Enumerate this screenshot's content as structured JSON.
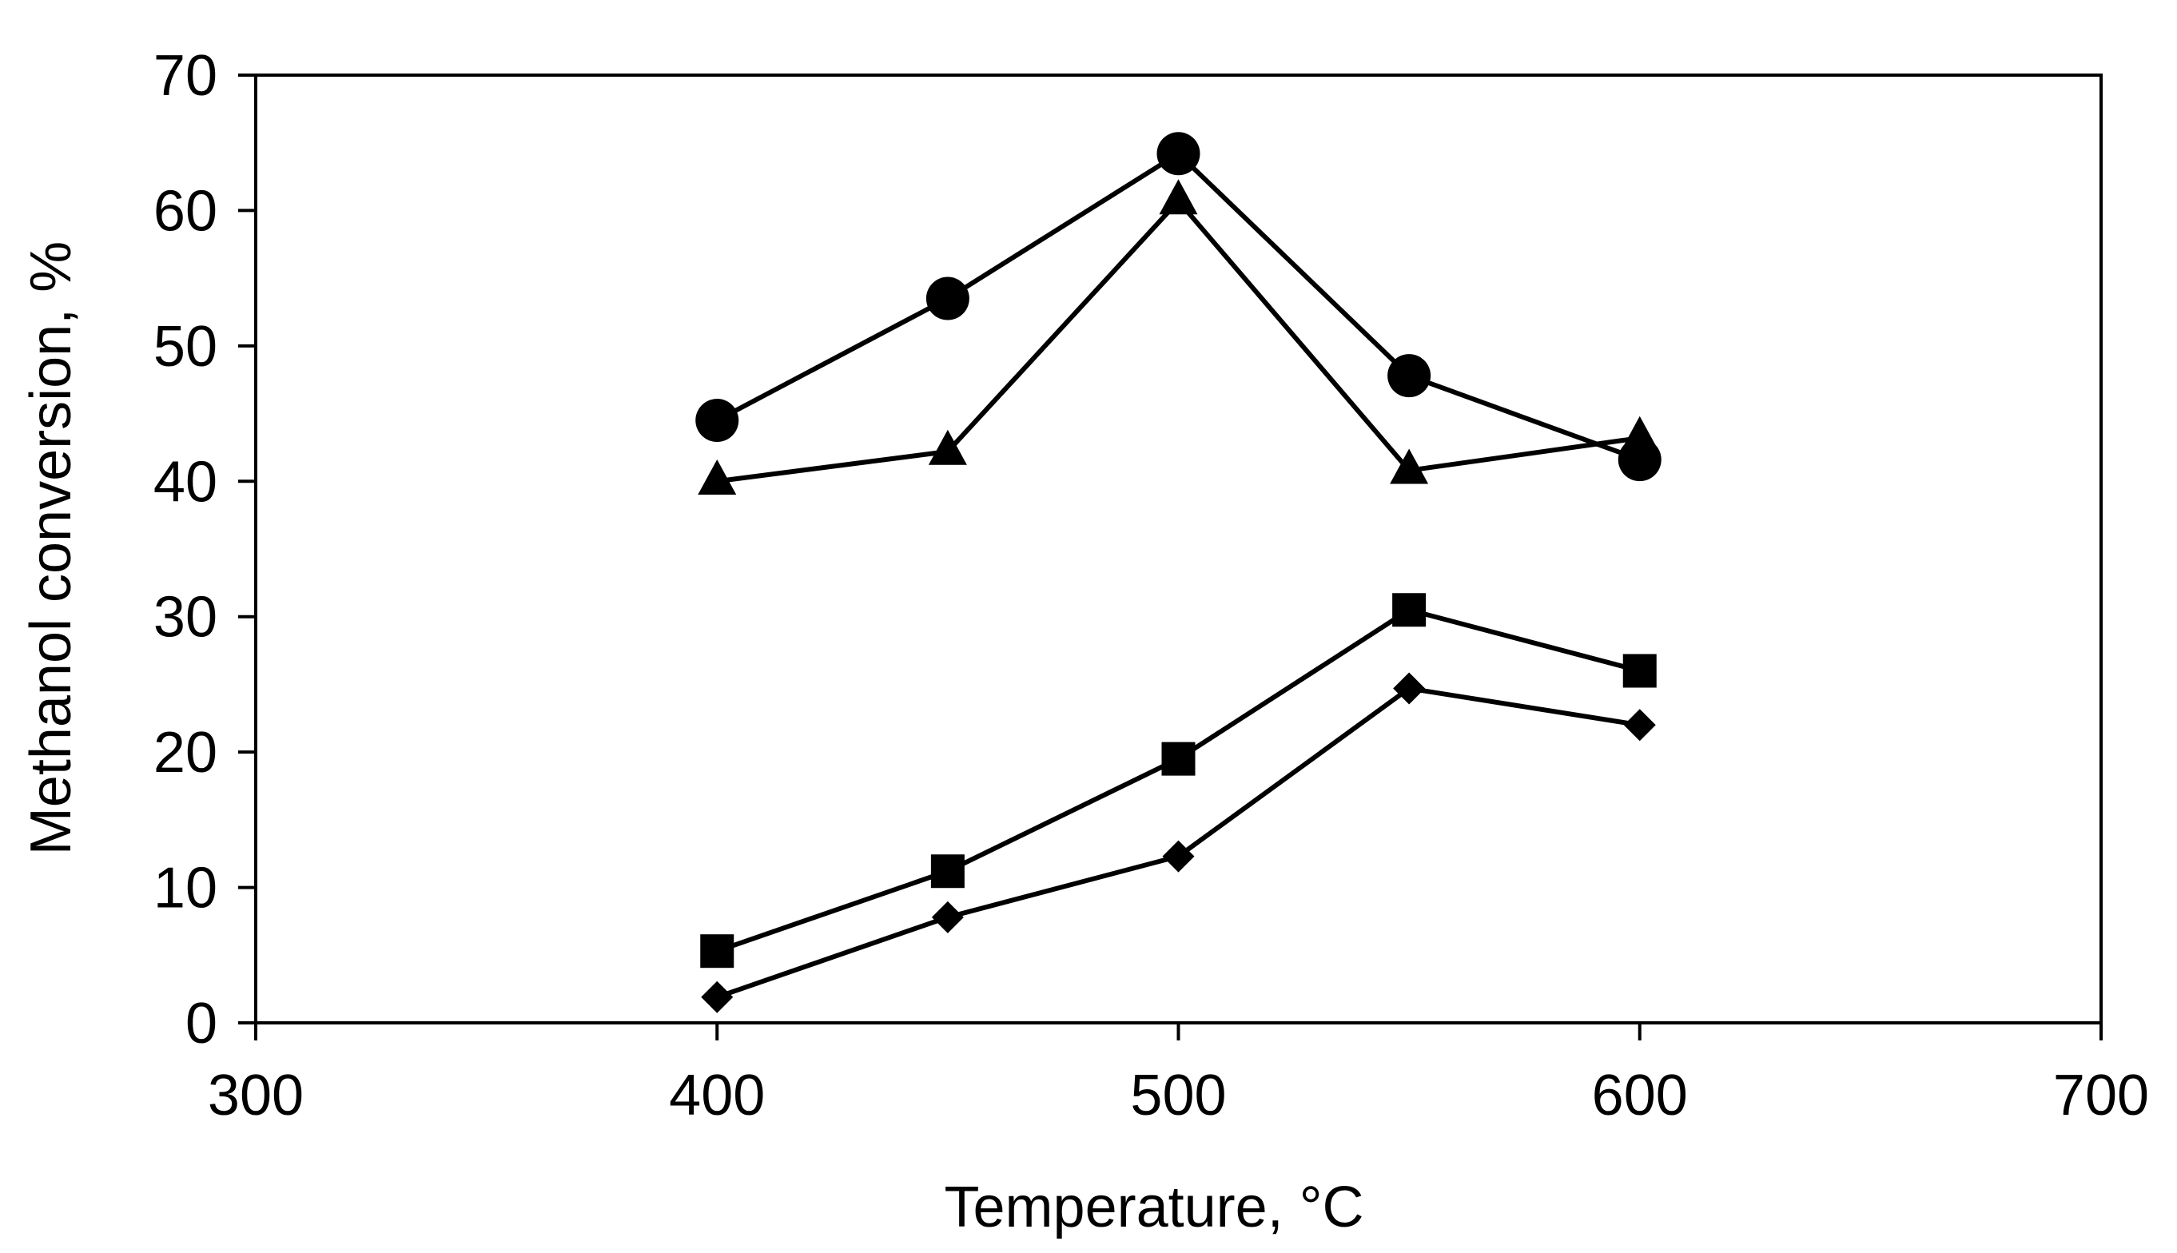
{
  "chart_data": {
    "type": "scatter",
    "title": "",
    "xlabel": "Temperature, °C",
    "ylabel": "Methanol conversion, %",
    "xlim": [
      300,
      700
    ],
    "ylim": [
      0,
      70
    ],
    "xticks": [
      300,
      400,
      500,
      600,
      700
    ],
    "yticks": [
      0,
      10,
      20,
      30,
      40,
      50,
      60,
      70
    ],
    "grid": false,
    "legend": "none",
    "colors": {
      "line": "#000000",
      "marker": "#000000",
      "background": "#ffffff"
    },
    "series": [
      {
        "marker": "circle",
        "x": [
          400,
          450,
          500,
          550,
          600
        ],
        "y": [
          44.5,
          53.5,
          64.2,
          47.8,
          41.6
        ]
      },
      {
        "marker": "triangle",
        "x": [
          400,
          450,
          500,
          550,
          600
        ],
        "y": [
          40.0,
          42.2,
          60.7,
          40.8,
          43.2
        ]
      },
      {
        "marker": "square",
        "x": [
          400,
          450,
          500,
          550,
          600
        ],
        "y": [
          5.3,
          11.2,
          19.5,
          30.5,
          26.0
        ]
      },
      {
        "marker": "diamond",
        "x": [
          400,
          450,
          500,
          550,
          600
        ],
        "y": [
          1.9,
          7.8,
          12.3,
          24.7,
          22.0
        ]
      }
    ]
  }
}
